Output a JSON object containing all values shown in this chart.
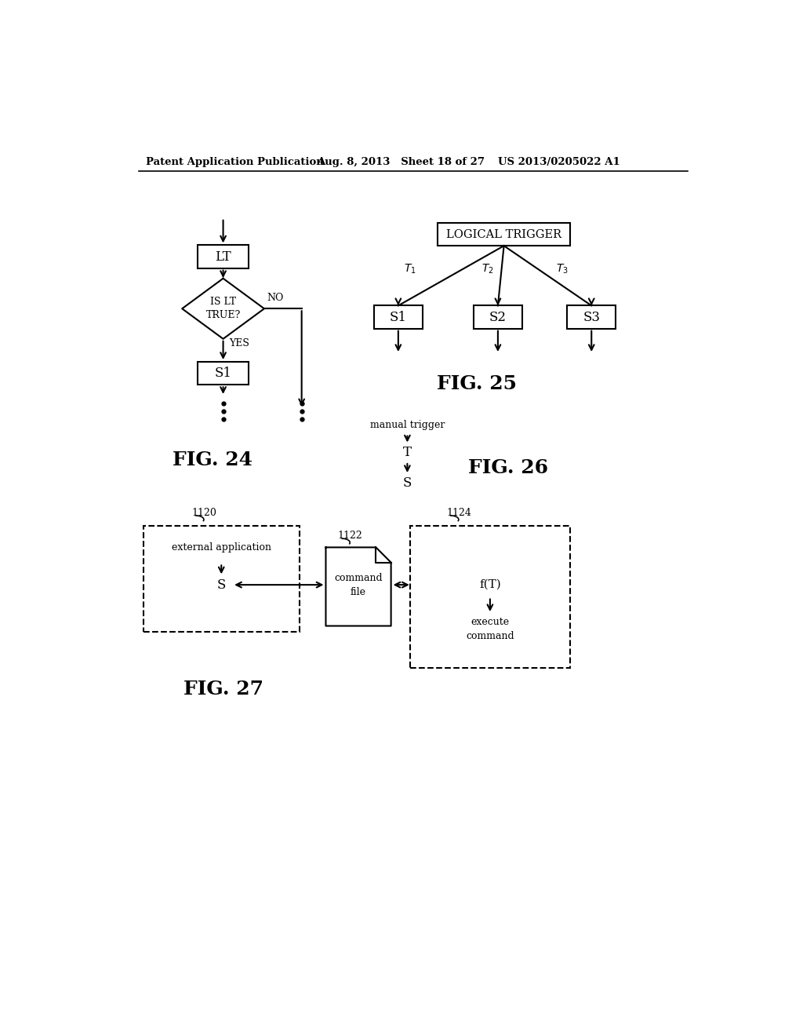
{
  "bg_color": "#ffffff",
  "header_left": "Patent Application Publication",
  "header_mid": "Aug. 8, 2013   Sheet 18 of 27",
  "header_right": "US 2013/0205022 A1"
}
